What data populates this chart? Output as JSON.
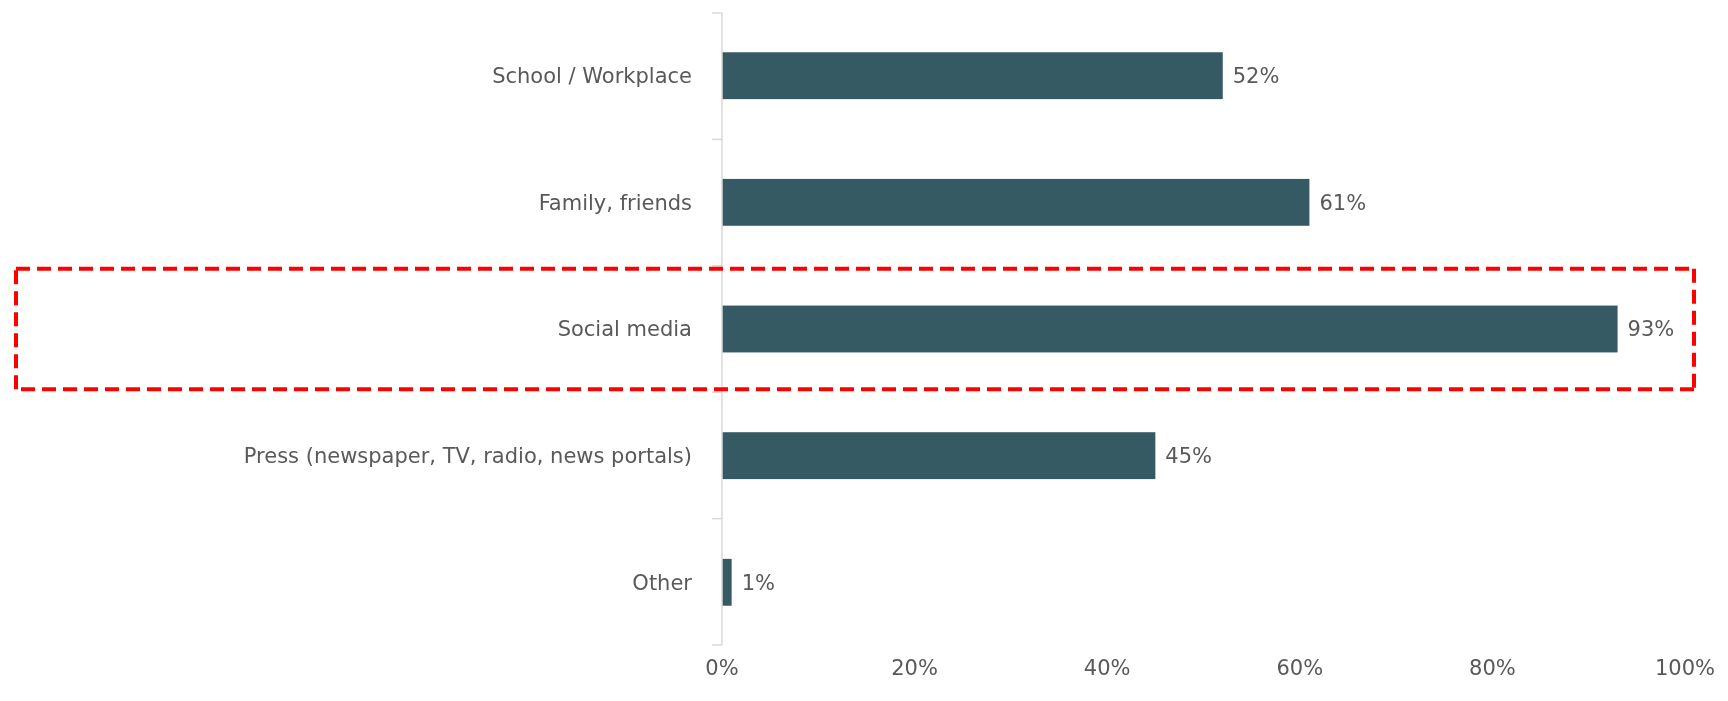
{
  "chart_data": {
    "type": "bar",
    "orientation": "horizontal",
    "categories": [
      "School / Workplace",
      "Family, friends",
      "Social media",
      "Press (newspaper, TV, radio, news portals)",
      "Other"
    ],
    "values": [
      52,
      61,
      93,
      45,
      1
    ],
    "color": "#365a63",
    "xlim": [
      0,
      100
    ],
    "xticks": [
      {
        "value": 0,
        "label": "0%"
      },
      {
        "value": 20,
        "label": "20%"
      },
      {
        "value": 40,
        "label": "40%"
      },
      {
        "value": 60,
        "label": "60%"
      },
      {
        "value": 80,
        "label": "80%"
      },
      {
        "value": 100,
        "label": "100%"
      }
    ],
    "value_labels": [
      "52%",
      "61%",
      "93%",
      "45%",
      "1%"
    ],
    "grid": false
  }
}
